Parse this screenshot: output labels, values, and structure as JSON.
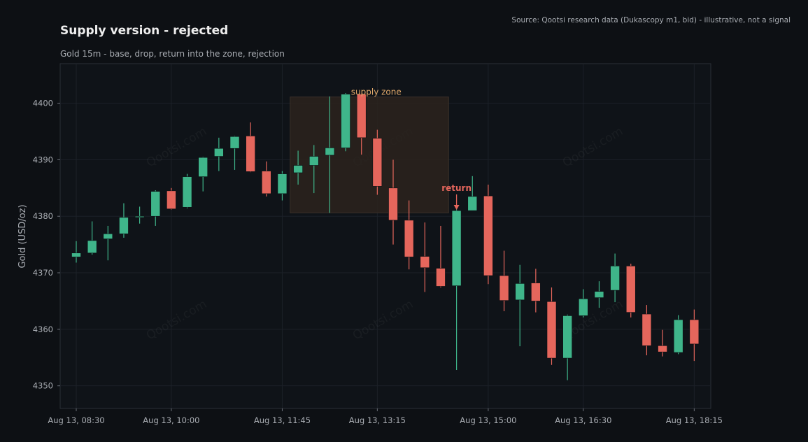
{
  "header": {
    "title": "Supply version - rejected",
    "subtitle": "Gold 15m - base, drop, return into the zone, rejection",
    "source": "Source: Qootsi research data (Dukascopy m1, bid) - illustrative, not a signal"
  },
  "watermark": "Qootsi.com",
  "colors": {
    "up": "#3fb58a",
    "down": "#e5665c",
    "zone_label": "#e0a86a",
    "return_label": "#e5665c"
  },
  "chart_data": {
    "type": "candlestick",
    "title": "Supply version - rejected",
    "subtitle": "Gold 15m - base, drop, return into the zone, rejection",
    "ylabel": "Gold (USD/oz)",
    "xlabel": "",
    "ylim": [
      4346,
      4407
    ],
    "yticks": [
      4350,
      4360,
      4370,
      4380,
      4390,
      4400
    ],
    "xticks": [
      {
        "index": 0,
        "label": "Aug 13, 08:30"
      },
      {
        "index": 6,
        "label": "Aug 13, 10:00"
      },
      {
        "index": 13,
        "label": "Aug 13, 11:45"
      },
      {
        "index": 19,
        "label": "Aug 13, 13:15"
      },
      {
        "index": 26,
        "label": "Aug 13, 15:00"
      },
      {
        "index": 32,
        "label": "Aug 13, 16:30"
      },
      {
        "index": 39,
        "label": "Aug 13, 18:15"
      }
    ],
    "grid": true,
    "candles": [
      {
        "o": 4372.8,
        "h": 4375.6,
        "l": 4371.8,
        "c": 4373.5
      },
      {
        "o": 4373.5,
        "h": 4379.1,
        "l": 4373.2,
        "c": 4375.7
      },
      {
        "o": 4376.0,
        "h": 4378.3,
        "l": 4372.2,
        "c": 4376.9
      },
      {
        "o": 4376.9,
        "h": 4382.3,
        "l": 4376.2,
        "c": 4379.8
      },
      {
        "o": 4379.8,
        "h": 4381.7,
        "l": 4378.7,
        "c": 4380.0
      },
      {
        "o": 4380.0,
        "h": 4384.6,
        "l": 4378.3,
        "c": 4384.4
      },
      {
        "o": 4384.5,
        "h": 4385.0,
        "l": 4381.2,
        "c": 4381.3
      },
      {
        "o": 4381.6,
        "h": 4387.5,
        "l": 4381.4,
        "c": 4387.0
      },
      {
        "o": 4387.0,
        "h": 4390.5,
        "l": 4384.4,
        "c": 4390.4
      },
      {
        "o": 4390.6,
        "h": 4393.9,
        "l": 4388.0,
        "c": 4392.0
      },
      {
        "o": 4392.0,
        "h": 4394.2,
        "l": 4388.2,
        "c": 4394.1
      },
      {
        "o": 4394.2,
        "h": 4396.6,
        "l": 4387.8,
        "c": 4387.9
      },
      {
        "o": 4388.0,
        "h": 4389.7,
        "l": 4383.5,
        "c": 4384.0
      },
      {
        "o": 4384.0,
        "h": 4388.0,
        "l": 4382.8,
        "c": 4387.5
      },
      {
        "o": 4387.7,
        "h": 4391.6,
        "l": 4385.6,
        "c": 4389.0
      },
      {
        "o": 4389.0,
        "h": 4392.6,
        "l": 4384.1,
        "c": 4390.6
      },
      {
        "o": 4390.8,
        "h": 4401.2,
        "l": 4380.6,
        "c": 4392.1
      },
      {
        "o": 4392.1,
        "h": 4401.8,
        "l": 4391.5,
        "c": 4401.6
      },
      {
        "o": 4401.6,
        "h": 4401.7,
        "l": 4390.9,
        "c": 4393.9
      },
      {
        "o": 4393.8,
        "h": 4395.3,
        "l": 4383.8,
        "c": 4385.3
      },
      {
        "o": 4385.0,
        "h": 4390.0,
        "l": 4375.0,
        "c": 4379.3
      },
      {
        "o": 4379.3,
        "h": 4382.8,
        "l": 4370.6,
        "c": 4372.8
      },
      {
        "o": 4372.9,
        "h": 4378.9,
        "l": 4366.6,
        "c": 4370.9
      },
      {
        "o": 4370.8,
        "h": 4378.3,
        "l": 4367.4,
        "c": 4367.6
      },
      {
        "o": 4367.7,
        "h": 4381.2,
        "l": 4352.8,
        "c": 4381.0
      },
      {
        "o": 4381.0,
        "h": 4387.1,
        "l": 4381.0,
        "c": 4383.5
      },
      {
        "o": 4383.6,
        "h": 4385.6,
        "l": 4368.0,
        "c": 4369.5
      },
      {
        "o": 4369.5,
        "h": 4373.9,
        "l": 4363.2,
        "c": 4365.1
      },
      {
        "o": 4365.2,
        "h": 4371.4,
        "l": 4357.0,
        "c": 4368.1
      },
      {
        "o": 4368.2,
        "h": 4370.7,
        "l": 4363.0,
        "c": 4365.0
      },
      {
        "o": 4364.9,
        "h": 4367.4,
        "l": 4353.7,
        "c": 4354.9
      },
      {
        "o": 4354.9,
        "h": 4362.6,
        "l": 4351.0,
        "c": 4362.4
      },
      {
        "o": 4362.4,
        "h": 4367.1,
        "l": 4362.1,
        "c": 4365.4
      },
      {
        "o": 4365.6,
        "h": 4368.5,
        "l": 4363.8,
        "c": 4366.7
      },
      {
        "o": 4366.9,
        "h": 4373.4,
        "l": 4364.8,
        "c": 4371.2
      },
      {
        "o": 4371.2,
        "h": 4371.6,
        "l": 4362.1,
        "c": 4363.0
      },
      {
        "o": 4362.7,
        "h": 4364.3,
        "l": 4355.4,
        "c": 4357.1
      },
      {
        "o": 4357.1,
        "h": 4359.9,
        "l": 4355.2,
        "c": 4356.0
      },
      {
        "o": 4355.9,
        "h": 4362.5,
        "l": 4355.6,
        "c": 4361.7
      },
      {
        "o": 4361.7,
        "h": 4363.5,
        "l": 4354.4,
        "c": 4357.4
      }
    ],
    "annotations": {
      "zone": {
        "label": "supply zone",
        "start_index": 13.5,
        "end_index": 23.5,
        "low": 4380.6,
        "high": 4401.1
      },
      "return": {
        "label": "return",
        "index": 24
      }
    }
  }
}
